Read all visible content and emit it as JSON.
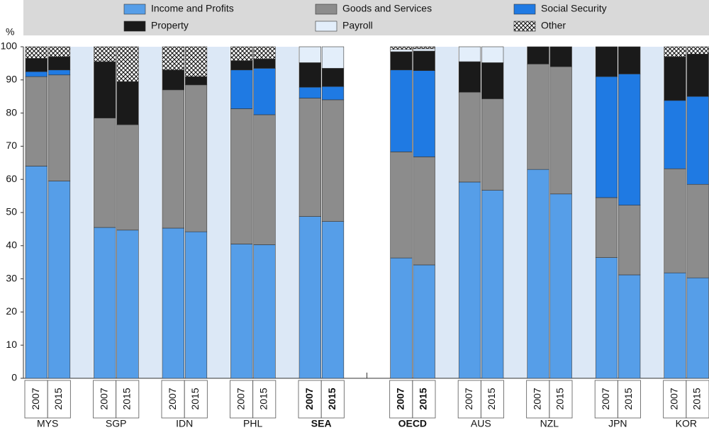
{
  "chart_data": {
    "type": "bar",
    "stacked": true,
    "y_unit": "%",
    "ylim": [
      0,
      100
    ],
    "yticks": [
      0,
      10,
      20,
      30,
      40,
      50,
      60,
      70,
      80,
      90,
      100
    ],
    "categories": [
      "2007",
      "2015",
      "2007",
      "2015",
      "2007",
      "2015",
      "2007",
      "2015",
      "2007",
      "2015",
      "2007",
      "2015",
      "2007",
      "2015",
      "2007",
      "2015",
      "2007",
      "2015",
      "2007",
      "2015"
    ],
    "groups": [
      {
        "name": "MYS",
        "bold": false
      },
      {
        "name": "SGP",
        "bold": false
      },
      {
        "name": "IDN",
        "bold": false
      },
      {
        "name": "PHL",
        "bold": false
      },
      {
        "name": "SEA",
        "bold": true
      },
      {
        "name": "OECD",
        "bold": true
      },
      {
        "name": "AUS",
        "bold": false
      },
      {
        "name": "NZL",
        "bold": false
      },
      {
        "name": "JPN",
        "bold": false
      },
      {
        "name": "KOR",
        "bold": false
      }
    ],
    "series": [
      {
        "name": "Income and Profits",
        "color": "#569ee8",
        "values": [
          64,
          59.5,
          45.5,
          44.7,
          45.3,
          44.2,
          40.5,
          40.3,
          48.8,
          47.3,
          36.3,
          34.2,
          59.2,
          56.7,
          63,
          55.6,
          36.4,
          31.2,
          31.8,
          30.3
        ]
      },
      {
        "name": "Goods and Services",
        "color": "#8c8c8c",
        "values": [
          27,
          32,
          33,
          31.8,
          41.7,
          44.3,
          40.8,
          39.2,
          35.7,
          36.7,
          32,
          32.6,
          27.1,
          27.6,
          31.8,
          38.4,
          18.1,
          21,
          31.4,
          28.2
        ]
      },
      {
        "name": "Social Security",
        "color": "#1f7ae3",
        "values": [
          1.5,
          1.5,
          0,
          0,
          0,
          0,
          11.7,
          14,
          3.3,
          4,
          24.7,
          26,
          0,
          0,
          0,
          0,
          36.5,
          39.6,
          20.6,
          26.5
        ]
      },
      {
        "name": "Property",
        "color": "#1a1a1a",
        "values": [
          4,
          4,
          17,
          13,
          6,
          2.5,
          2.8,
          2.8,
          7.4,
          5.5,
          5.5,
          5.9,
          9.2,
          10.9,
          5.2,
          6,
          9,
          8.2,
          13.2,
          12.8
        ]
      },
      {
        "name": "Payroll",
        "color": "#e3eefa",
        "values": [
          0,
          0,
          0,
          0,
          0,
          0,
          0,
          0,
          4.8,
          6.5,
          0.7,
          0.7,
          4.5,
          4.8,
          0,
          0,
          0,
          0,
          0,
          0
        ]
      },
      {
        "name": "Other",
        "color": "#ffffff",
        "pattern": "crosshatch",
        "values": [
          3.5,
          3,
          4.5,
          10.5,
          7,
          9,
          4.2,
          3.7,
          0,
          0,
          0.8,
          0.6,
          0,
          0,
          0,
          0,
          0,
          0,
          3,
          2.2
        ]
      }
    ]
  }
}
